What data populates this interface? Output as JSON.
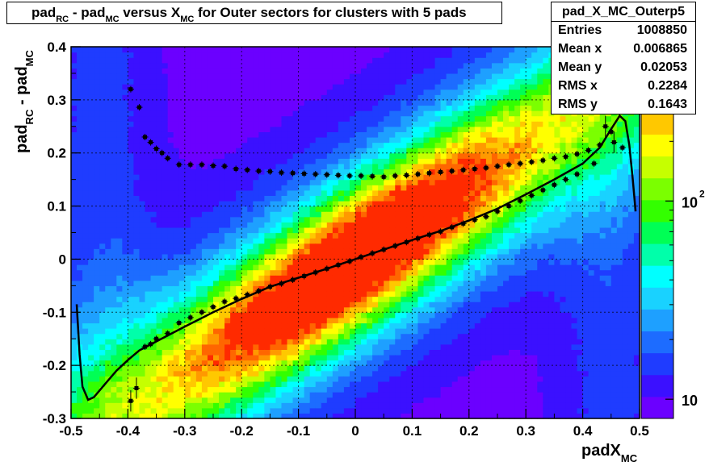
{
  "title": {
    "p1": "pad",
    "s1": "RC",
    "p2": " - pad",
    "s2": "MC",
    "p3": " versus X",
    "s3": "MC",
    "p4": " for Outer sectors for clusters with 5 pads"
  },
  "stats": {
    "name": "pad_X_MC_Outerp5",
    "rows": [
      {
        "key": "Entries",
        "value": "1008850"
      },
      {
        "key": "Mean x",
        "value": "0.006865"
      },
      {
        "key": "Mean y",
        "value": "0.02053"
      },
      {
        "key": "RMS x",
        "value": "0.2284"
      },
      {
        "key": "RMS y",
        "value": "0.1643"
      }
    ]
  },
  "xlabel": {
    "main": "padX",
    "sub": "MC"
  },
  "ylabel": {
    "p1": "pad",
    "s1": "RC",
    "p2": " - pad",
    "s2": "MC"
  },
  "chart_data": {
    "type": "heatmap",
    "xlim": [
      -0.5,
      0.5
    ],
    "ylim": [
      -0.3,
      0.4
    ],
    "x_ticks": [
      "-0.5",
      "-0.4",
      "-0.3",
      "-0.2",
      "-0.1",
      "0",
      "0.1",
      "0.2",
      "0.3",
      "0.4",
      "0.5"
    ],
    "y_ticks": [
      "-0.3",
      "-0.2",
      "-0.1",
      "0",
      "0.1",
      "0.2",
      "0.3",
      "0.4"
    ],
    "grid": true,
    "color_scale": "log",
    "z_ticks": [
      {
        "base": "10",
        "exp": ""
      },
      {
        "base": "10",
        "exp": "2"
      }
    ],
    "density_model": {
      "center_slope": 0.7,
      "peak_counts": 600,
      "min_counts": 8
    },
    "mean_points": [
      {
        "x": -0.395,
        "y": -0.267
      },
      {
        "x": -0.385,
        "y": -0.243
      },
      {
        "x": -0.37,
        "y": -0.165
      },
      {
        "x": -0.36,
        "y": -0.16
      },
      {
        "x": -0.35,
        "y": -0.15
      },
      {
        "x": -0.33,
        "y": -0.14
      },
      {
        "x": -0.31,
        "y": -0.12
      },
      {
        "x": -0.29,
        "y": -0.11
      },
      {
        "x": -0.27,
        "y": -0.1
      },
      {
        "x": -0.25,
        "y": -0.09
      },
      {
        "x": -0.23,
        "y": -0.08
      },
      {
        "x": -0.21,
        "y": -0.074
      },
      {
        "x": -0.19,
        "y": -0.067
      },
      {
        "x": -0.17,
        "y": -0.06
      },
      {
        "x": -0.15,
        "y": -0.052
      },
      {
        "x": -0.13,
        "y": -0.046
      },
      {
        "x": -0.11,
        "y": -0.039
      },
      {
        "x": -0.09,
        "y": -0.032
      },
      {
        "x": -0.07,
        "y": -0.025
      },
      {
        "x": -0.05,
        "y": -0.018
      },
      {
        "x": -0.03,
        "y": -0.011
      },
      {
        "x": -0.01,
        "y": -0.004
      },
      {
        "x": 0.01,
        "y": 0.004
      },
      {
        "x": 0.03,
        "y": 0.011
      },
      {
        "x": 0.05,
        "y": 0.018
      },
      {
        "x": 0.07,
        "y": 0.025
      },
      {
        "x": 0.09,
        "y": 0.032
      },
      {
        "x": 0.11,
        "y": 0.039
      },
      {
        "x": 0.13,
        "y": 0.046
      },
      {
        "x": 0.15,
        "y": 0.052
      },
      {
        "x": 0.17,
        "y": 0.06
      },
      {
        "x": 0.19,
        "y": 0.067
      },
      {
        "x": 0.21,
        "y": 0.074
      },
      {
        "x": 0.23,
        "y": 0.08
      },
      {
        "x": 0.25,
        "y": 0.09
      },
      {
        "x": 0.27,
        "y": 0.1
      },
      {
        "x": 0.29,
        "y": 0.11
      },
      {
        "x": 0.31,
        "y": 0.12
      },
      {
        "x": 0.33,
        "y": 0.13
      },
      {
        "x": 0.35,
        "y": 0.14
      },
      {
        "x": 0.37,
        "y": 0.15
      },
      {
        "x": 0.39,
        "y": 0.16
      },
      {
        "x": 0.42,
        "y": 0.18
      },
      {
        "x": 0.44,
        "y": 0.25
      },
      {
        "x": 0.455,
        "y": 0.22
      },
      {
        "x": 0.47,
        "y": 0.21
      }
    ],
    "mean_errors_y": {
      "-0.395": 0.02,
      "-0.385": 0.02,
      "0.44": 0.02,
      "0.455": 0.02
    },
    "rms_points": [
      {
        "x": -0.395,
        "y": 0.32
      },
      {
        "x": -0.38,
        "y": 0.286
      },
      {
        "x": -0.37,
        "y": 0.23
      },
      {
        "x": -0.36,
        "y": 0.22
      },
      {
        "x": -0.35,
        "y": 0.208
      },
      {
        "x": -0.34,
        "y": 0.2
      },
      {
        "x": -0.33,
        "y": 0.19
      },
      {
        "x": -0.31,
        "y": 0.178
      },
      {
        "x": -0.29,
        "y": 0.178
      },
      {
        "x": -0.27,
        "y": 0.178
      },
      {
        "x": -0.25,
        "y": 0.176
      },
      {
        "x": -0.23,
        "y": 0.175
      },
      {
        "x": -0.21,
        "y": 0.17
      },
      {
        "x": -0.19,
        "y": 0.168
      },
      {
        "x": -0.17,
        "y": 0.166
      },
      {
        "x": -0.15,
        "y": 0.165
      },
      {
        "x": -0.13,
        "y": 0.163
      },
      {
        "x": -0.11,
        "y": 0.162
      },
      {
        "x": -0.09,
        "y": 0.161
      },
      {
        "x": -0.07,
        "y": 0.16
      },
      {
        "x": -0.05,
        "y": 0.159
      },
      {
        "x": -0.03,
        "y": 0.158
      },
      {
        "x": -0.01,
        "y": 0.157
      },
      {
        "x": 0.01,
        "y": 0.157
      },
      {
        "x": 0.03,
        "y": 0.156
      },
      {
        "x": 0.05,
        "y": 0.155
      },
      {
        "x": 0.07,
        "y": 0.157
      },
      {
        "x": 0.09,
        "y": 0.158
      },
      {
        "x": 0.11,
        "y": 0.16
      },
      {
        "x": 0.13,
        "y": 0.162
      },
      {
        "x": 0.15,
        "y": 0.164
      },
      {
        "x": 0.17,
        "y": 0.166
      },
      {
        "x": 0.19,
        "y": 0.168
      },
      {
        "x": 0.21,
        "y": 0.17
      },
      {
        "x": 0.23,
        "y": 0.172
      },
      {
        "x": 0.25,
        "y": 0.175
      },
      {
        "x": 0.27,
        "y": 0.178
      },
      {
        "x": 0.29,
        "y": 0.18
      },
      {
        "x": 0.31,
        "y": 0.183
      },
      {
        "x": 0.33,
        "y": 0.186
      },
      {
        "x": 0.35,
        "y": 0.19
      },
      {
        "x": 0.37,
        "y": 0.193
      },
      {
        "x": 0.39,
        "y": 0.198
      },
      {
        "x": 0.41,
        "y": 0.205
      },
      {
        "x": 0.43,
        "y": 0.215
      },
      {
        "x": 0.45,
        "y": 0.24
      }
    ],
    "fit_curve": [
      {
        "x": -0.49,
        "y": -0.085
      },
      {
        "x": -0.485,
        "y": -0.18
      },
      {
        "x": -0.48,
        "y": -0.24
      },
      {
        "x": -0.47,
        "y": -0.265
      },
      {
        "x": -0.46,
        "y": -0.26
      },
      {
        "x": -0.44,
        "y": -0.235
      },
      {
        "x": -0.42,
        "y": -0.21
      },
      {
        "x": -0.4,
        "y": -0.19
      },
      {
        "x": -0.38,
        "y": -0.172
      },
      {
        "x": -0.35,
        "y": -0.155
      },
      {
        "x": -0.3,
        "y": -0.127
      },
      {
        "x": -0.25,
        "y": -0.1
      },
      {
        "x": -0.2,
        "y": -0.075
      },
      {
        "x": -0.15,
        "y": -0.052
      },
      {
        "x": -0.1,
        "y": -0.035
      },
      {
        "x": -0.05,
        "y": -0.018
      },
      {
        "x": 0.0,
        "y": 0.0
      },
      {
        "x": 0.05,
        "y": 0.018
      },
      {
        "x": 0.1,
        "y": 0.036
      },
      {
        "x": 0.15,
        "y": 0.053
      },
      {
        "x": 0.2,
        "y": 0.073
      },
      {
        "x": 0.25,
        "y": 0.095
      },
      {
        "x": 0.3,
        "y": 0.122
      },
      {
        "x": 0.35,
        "y": 0.15
      },
      {
        "x": 0.4,
        "y": 0.18
      },
      {
        "x": 0.43,
        "y": 0.21
      },
      {
        "x": 0.45,
        "y": 0.245
      },
      {
        "x": 0.465,
        "y": 0.27
      },
      {
        "x": 0.475,
        "y": 0.26
      },
      {
        "x": 0.482,
        "y": 0.215
      },
      {
        "x": 0.488,
        "y": 0.15
      },
      {
        "x": 0.493,
        "y": 0.09
      }
    ]
  }
}
